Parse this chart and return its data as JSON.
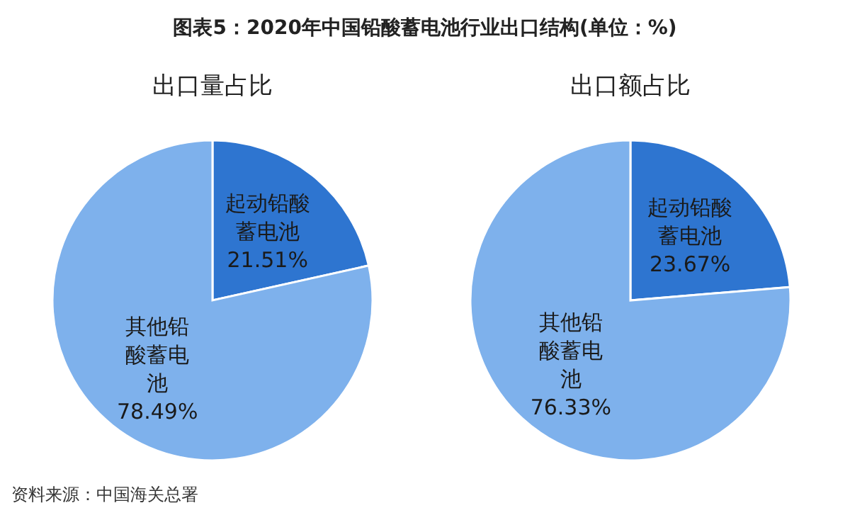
{
  "chart_data": [
    {
      "type": "pie",
      "title": "图表5：2020年中国铅酸蓄电池行业出口结构(单位：%)",
      "subtitle": "出口量占比",
      "categories": [
        "起动铅酸蓄电池",
        "其他铅酸蓄电池"
      ],
      "values": [
        21.51,
        78.49
      ],
      "value_labels": [
        "21.51%",
        "78.49%"
      ],
      "colors": [
        "#2e75d0",
        "#7eb1ec"
      ]
    },
    {
      "type": "pie",
      "title": "出口额占比",
      "categories": [
        "起动铅酸蓄电池",
        "其他铅酸蓄电池"
      ],
      "values": [
        23.67,
        76.33
      ],
      "value_labels": [
        "23.67%",
        "76.33%"
      ],
      "colors": [
        "#2e75d0",
        "#7eb1ec"
      ],
      "annotations": [
        "资料来源：中国海关总署"
      ]
    }
  ]
}
